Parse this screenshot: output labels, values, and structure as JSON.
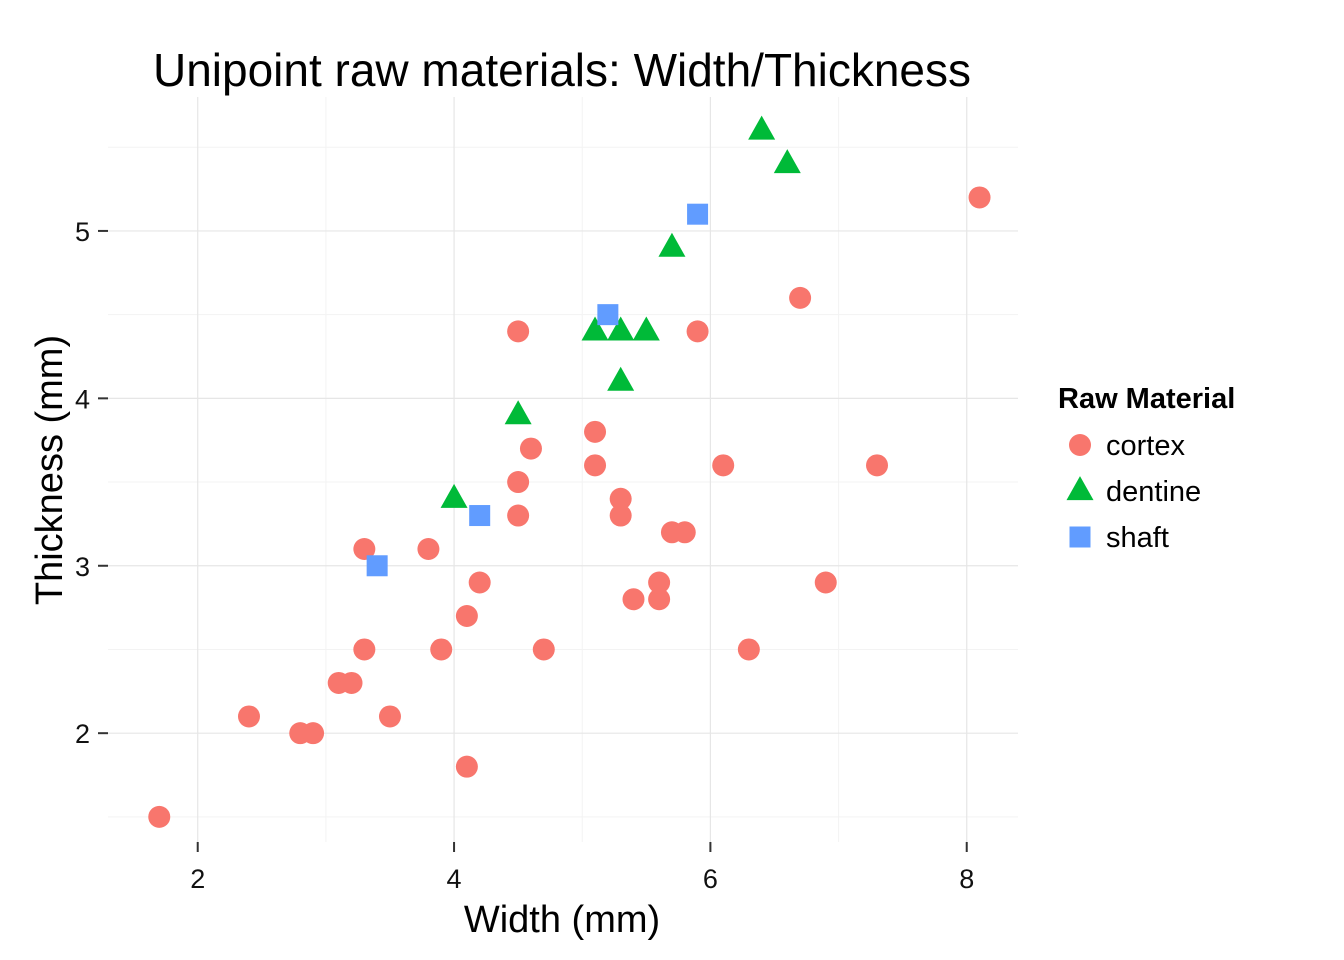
{
  "chart_data": {
    "type": "scatter",
    "title": "Unipoint raw materials: Width/Thickness",
    "xlabel": "Width (mm)",
    "ylabel": "Thickness (mm)",
    "xlim": [
      1.3,
      8.4
    ],
    "ylim": [
      1.35,
      5.8
    ],
    "x_ticks": [
      2,
      4,
      6,
      8
    ],
    "y_ticks": [
      2,
      3,
      4,
      5
    ],
    "x_tick_labels": [
      "2",
      "4",
      "6",
      "8"
    ],
    "y_tick_labels": [
      "2",
      "3",
      "4",
      "5"
    ],
    "grid": true,
    "legend": {
      "title": "Raw Material",
      "position": "right"
    },
    "series": [
      {
        "name": "cortex",
        "color": "#F8766D",
        "marker": "circle",
        "points": [
          [
            1.7,
            1.5
          ],
          [
            2.4,
            2.1
          ],
          [
            2.8,
            2.0
          ],
          [
            2.9,
            2.0
          ],
          [
            3.1,
            2.3
          ],
          [
            3.2,
            2.3
          ],
          [
            3.3,
            2.5
          ],
          [
            3.3,
            3.1
          ],
          [
            3.5,
            2.1
          ],
          [
            3.8,
            3.1
          ],
          [
            3.9,
            2.5
          ],
          [
            4.1,
            1.8
          ],
          [
            4.1,
            2.7
          ],
          [
            4.2,
            2.9
          ],
          [
            4.5,
            3.3
          ],
          [
            4.5,
            3.5
          ],
          [
            4.5,
            4.4
          ],
          [
            4.6,
            3.7
          ],
          [
            4.7,
            2.5
          ],
          [
            5.1,
            3.6
          ],
          [
            5.1,
            3.8
          ],
          [
            5.3,
            3.3
          ],
          [
            5.3,
            3.4
          ],
          [
            5.4,
            2.8
          ],
          [
            5.6,
            2.8
          ],
          [
            5.6,
            2.9
          ],
          [
            5.7,
            3.2
          ],
          [
            5.8,
            3.2
          ],
          [
            5.9,
            4.4
          ],
          [
            6.1,
            3.6
          ],
          [
            6.3,
            2.5
          ],
          [
            6.7,
            4.6
          ],
          [
            6.9,
            2.9
          ],
          [
            7.3,
            3.6
          ],
          [
            8.1,
            5.2
          ]
        ]
      },
      {
        "name": "dentine",
        "color": "#00BA38",
        "marker": "triangle",
        "points": [
          [
            4.0,
            3.4
          ],
          [
            4.5,
            3.9
          ],
          [
            5.1,
            4.4
          ],
          [
            5.3,
            4.4
          ],
          [
            5.3,
            4.1
          ],
          [
            5.5,
            4.4
          ],
          [
            5.7,
            4.9
          ],
          [
            6.4,
            5.6
          ],
          [
            6.6,
            5.4
          ]
        ]
      },
      {
        "name": "shaft",
        "color": "#619CFF",
        "marker": "square",
        "points": [
          [
            3.4,
            3.0
          ],
          [
            4.2,
            3.3
          ],
          [
            5.2,
            4.5
          ],
          [
            5.9,
            5.1
          ]
        ]
      }
    ]
  }
}
